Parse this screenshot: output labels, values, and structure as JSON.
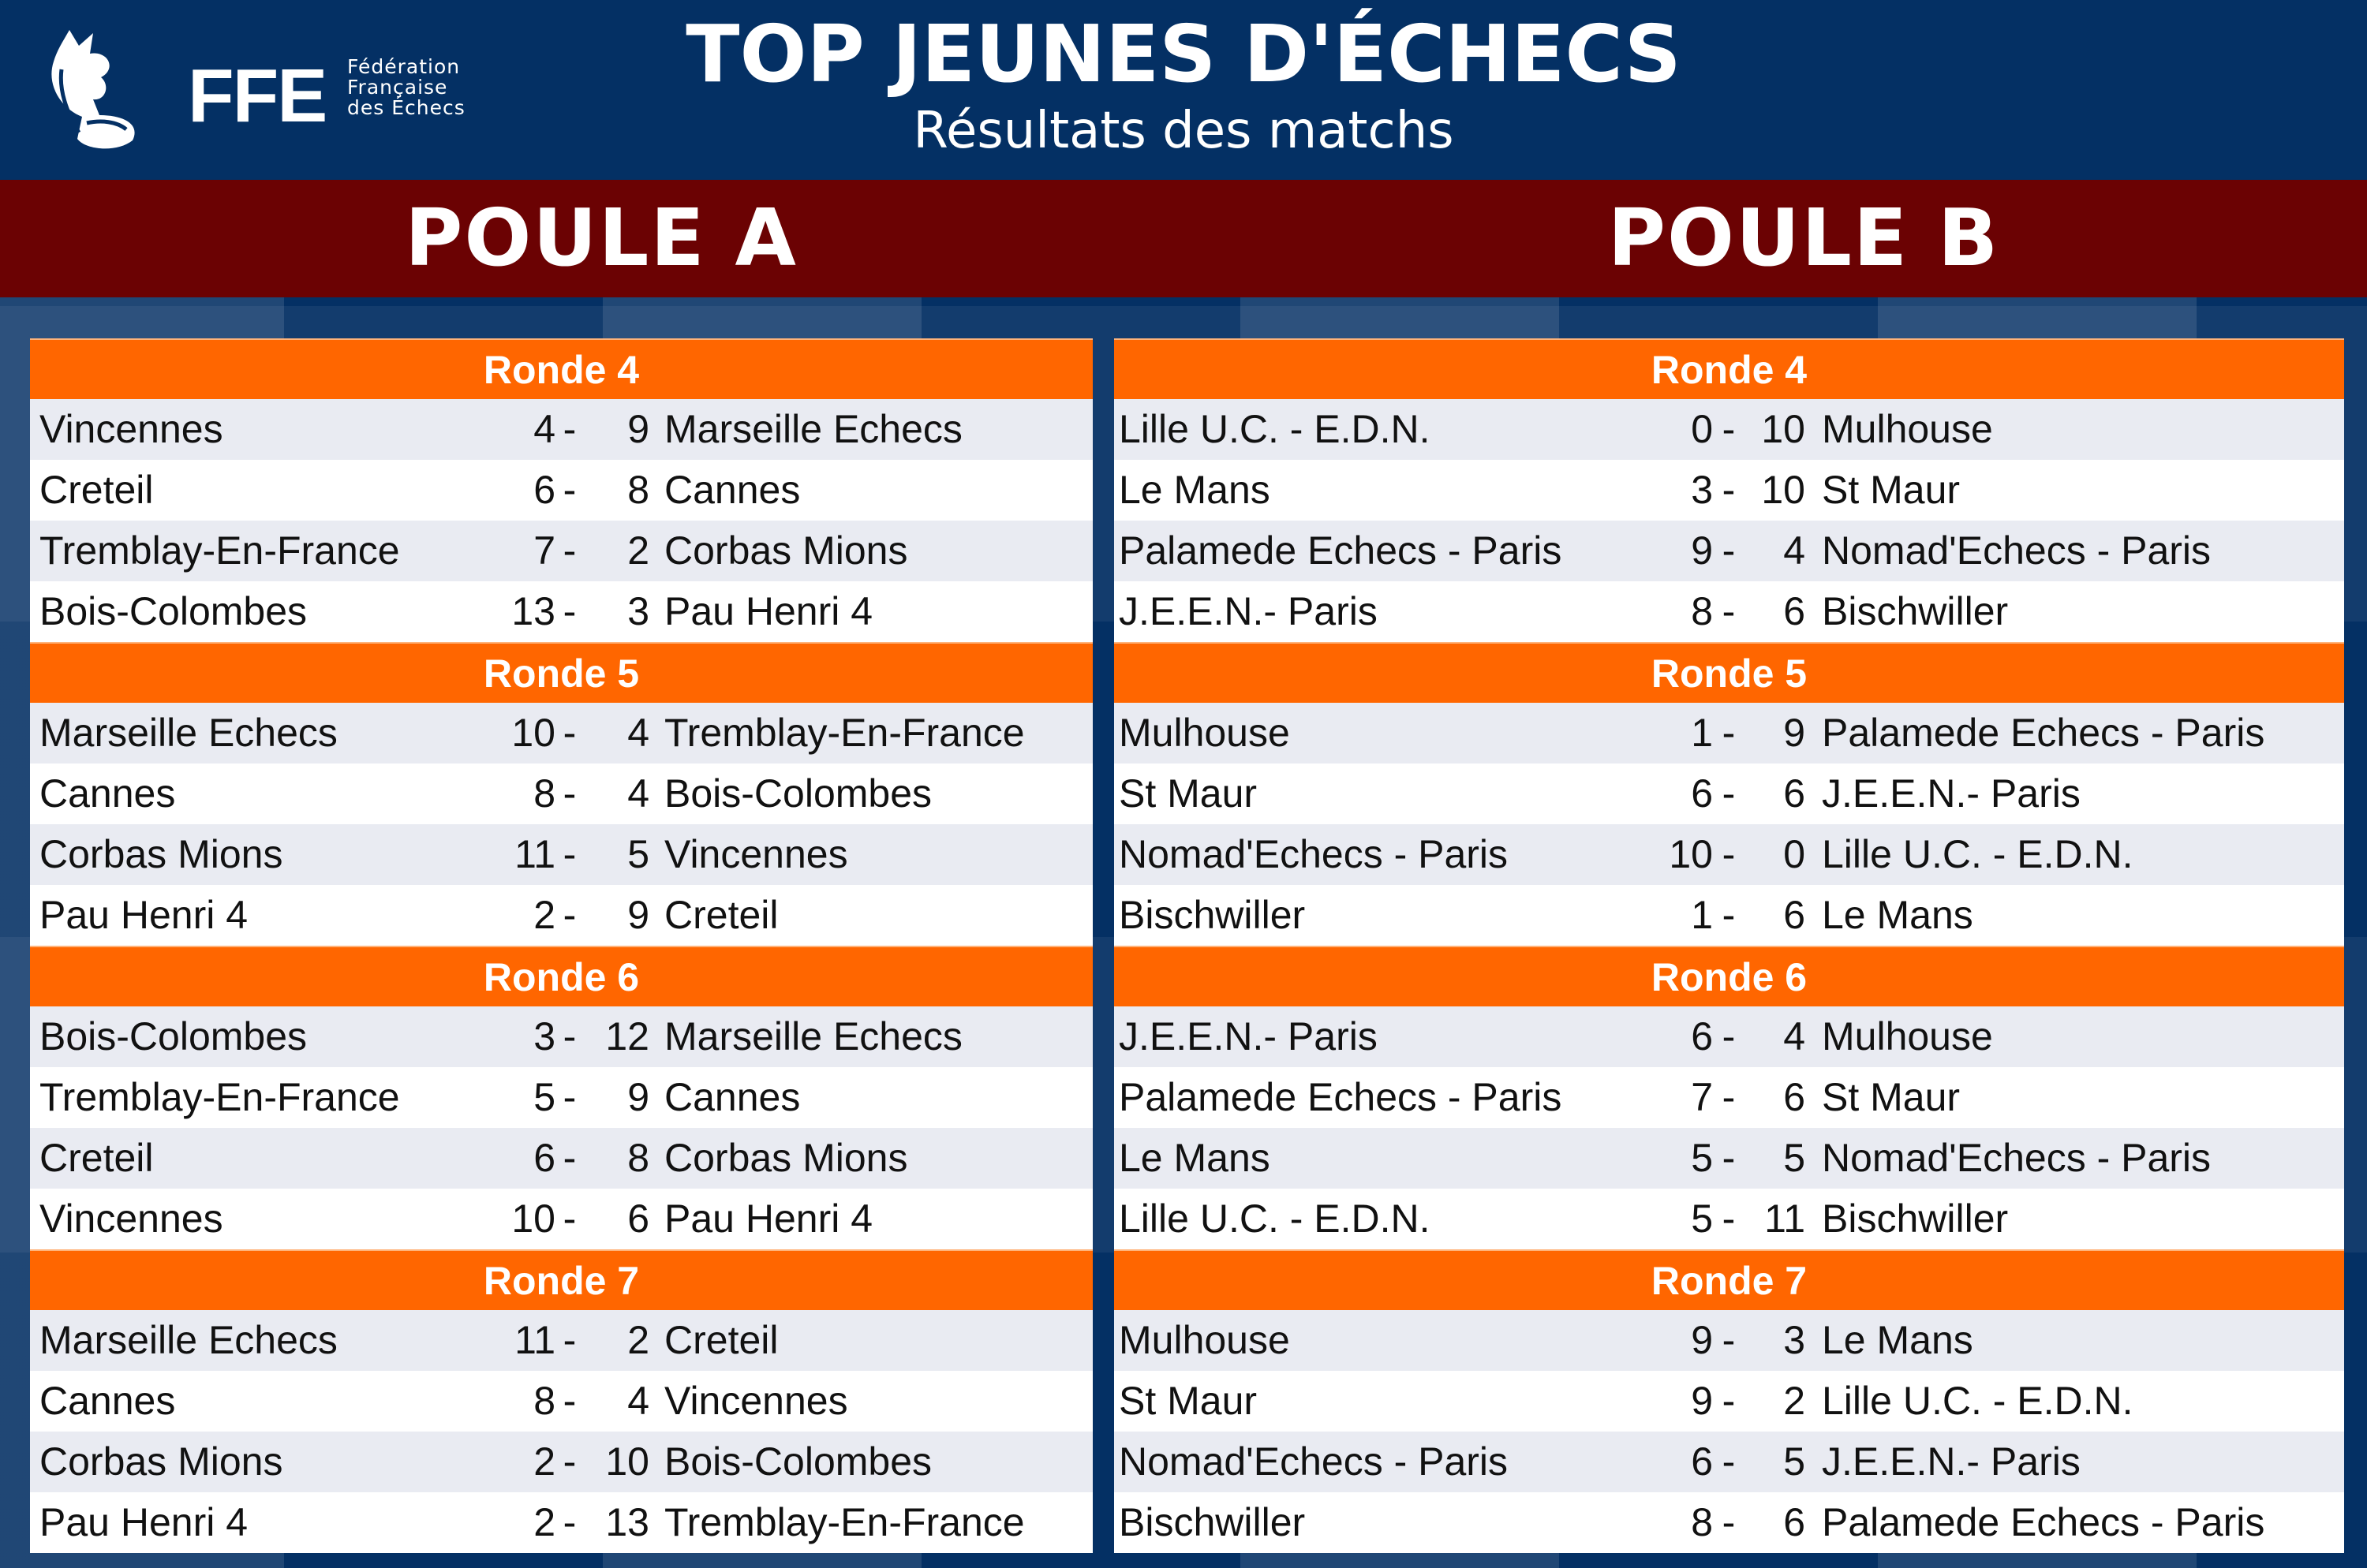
{
  "header": {
    "logo_text": "FFE",
    "logo_sub": [
      "Fédération",
      "Française",
      "des Échecs"
    ],
    "title": "TOP JEUNES D'ÉCHECS",
    "subtitle": "Résultats des matchs"
  },
  "colors": {
    "navy": "#043064",
    "band": "#6b0203",
    "orange": "#ff6600",
    "row_alt": "#e9ebf2"
  },
  "pools": [
    {
      "title": "POULE A",
      "rounds": [
        {
          "label": "Ronde 4",
          "matches": [
            [
              "Vincennes",
              "4",
              "9",
              "Marseille Echecs"
            ],
            [
              "Creteil",
              "6",
              "8",
              "Cannes"
            ],
            [
              "Tremblay-En-France",
              "7",
              "2",
              "Corbas Mions"
            ],
            [
              "Bois-Colombes",
              "13",
              "3",
              "Pau Henri 4"
            ]
          ]
        },
        {
          "label": "Ronde 5",
          "matches": [
            [
              "Marseille Echecs",
              "10",
              "4",
              "Tremblay-En-France"
            ],
            [
              "Cannes",
              "8",
              "4",
              "Bois-Colombes"
            ],
            [
              "Corbas Mions",
              "11",
              "5",
              "Vincennes"
            ],
            [
              "Pau Henri 4",
              "2",
              "9",
              "Creteil"
            ]
          ]
        },
        {
          "label": "Ronde 6",
          "matches": [
            [
              "Bois-Colombes",
              "3",
              "12",
              "Marseille Echecs"
            ],
            [
              "Tremblay-En-France",
              "5",
              "9",
              "Cannes"
            ],
            [
              "Creteil",
              "6",
              "8",
              "Corbas Mions"
            ],
            [
              "Vincennes",
              "10",
              "6",
              "Pau Henri 4"
            ]
          ]
        },
        {
          "label": "Ronde 7",
          "matches": [
            [
              "Marseille Echecs",
              "11",
              "2",
              "Creteil"
            ],
            [
              "Cannes",
              "8",
              "4",
              "Vincennes"
            ],
            [
              "Corbas Mions",
              "2",
              "10",
              "Bois-Colombes"
            ],
            [
              "Pau Henri 4",
              "2",
              "13",
              "Tremblay-En-France"
            ]
          ]
        }
      ]
    },
    {
      "title": "POULE B",
      "rounds": [
        {
          "label": "Ronde 4",
          "matches": [
            [
              "Lille U.C. - E.D.N.",
              "0",
              "10",
              "Mulhouse"
            ],
            [
              "Le Mans",
              "3",
              "10",
              "St Maur"
            ],
            [
              "Palamede Echecs - Paris",
              "9",
              "4",
              "Nomad'Echecs - Paris"
            ],
            [
              "J.E.E.N.- Paris",
              "8",
              "6",
              "Bischwiller"
            ]
          ]
        },
        {
          "label": "Ronde 5",
          "matches": [
            [
              "Mulhouse",
              "1",
              "9",
              "Palamede Echecs - Paris"
            ],
            [
              "St Maur",
              "6",
              "6",
              "J.E.E.N.- Paris"
            ],
            [
              "Nomad'Echecs - Paris",
              "10",
              "0",
              "Lille U.C. - E.D.N."
            ],
            [
              "Bischwiller",
              "1",
              "6",
              "Le Mans"
            ]
          ]
        },
        {
          "label": "Ronde 6",
          "matches": [
            [
              "J.E.E.N.- Paris",
              "6",
              "4",
              "Mulhouse"
            ],
            [
              "Palamede Echecs - Paris",
              "7",
              "6",
              "St Maur"
            ],
            [
              "Le Mans",
              "5",
              "5",
              "Nomad'Echecs - Paris"
            ],
            [
              "Lille U.C. - E.D.N.",
              "5",
              "11",
              "Bischwiller"
            ]
          ]
        },
        {
          "label": "Ronde 7",
          "matches": [
            [
              "Mulhouse",
              "9",
              "3",
              "Le Mans"
            ],
            [
              "St Maur",
              "9",
              "2",
              "Lille U.C. - E.D.N."
            ],
            [
              "Nomad'Echecs - Paris",
              "6",
              "5",
              "J.E.E.N.- Paris"
            ],
            [
              "Bischwiller",
              "8",
              "6",
              "Palamede Echecs - Paris"
            ]
          ]
        }
      ]
    }
  ]
}
